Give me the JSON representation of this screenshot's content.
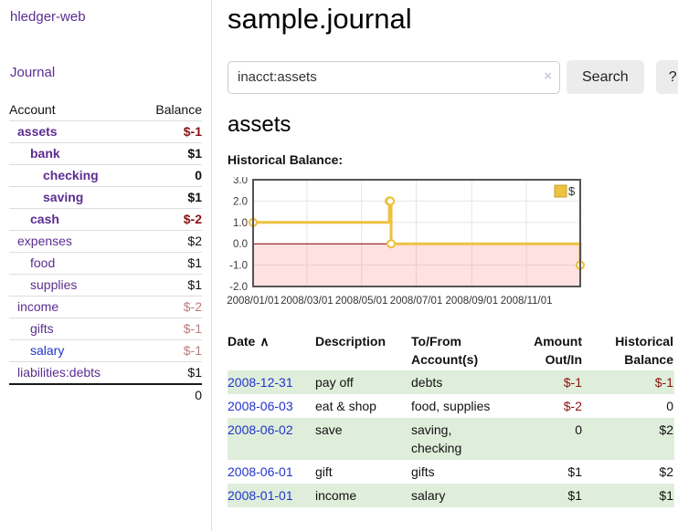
{
  "colors": {
    "accent_purple": "#5c2d91",
    "link_blue": "#2233cc",
    "negative_strong": "#8b1010",
    "negative_muted": "#bb7a7a",
    "row_green": "#dfeeda",
    "chart_line": "#edc240",
    "chart_zero_line": "#8b0000",
    "chart_negative_fill": "rgba(255,90,90,0.18)"
  },
  "sidebar": {
    "app_title": "hledger-web",
    "journal_label": "Journal",
    "accounts_table": {
      "col_account": "Account",
      "col_balance": "Balance",
      "rows": [
        {
          "name": "assets",
          "balance": "$-1"
        },
        {
          "name": "bank",
          "balance": "$1"
        },
        {
          "name": "checking",
          "balance": "0"
        },
        {
          "name": "saving",
          "balance": "$1"
        },
        {
          "name": "cash",
          "balance": "$-2"
        },
        {
          "name": "expenses",
          "balance": "$2"
        },
        {
          "name": "food",
          "balance": "$1"
        },
        {
          "name": "supplies",
          "balance": "$1"
        },
        {
          "name": "income",
          "balance": "$-2"
        },
        {
          "name": "gifts",
          "balance": "$-1"
        },
        {
          "name": "salary",
          "balance": "$-1"
        },
        {
          "name": "liabilities:debts",
          "balance": "$1"
        }
      ],
      "total": "0"
    }
  },
  "main": {
    "title": "sample.journal",
    "search": {
      "value": "inacct:assets",
      "clear_icon": "×",
      "button_label": "Search",
      "help_label": "?"
    },
    "account_heading": "assets",
    "chart_heading": "Historical Balance:",
    "register_table": {
      "headers": {
        "date": "Date",
        "sort_indicator": "∧",
        "description": "Description",
        "accounts": "To/From Account(s)",
        "amount": "Amount Out/In",
        "historical": "Historical Balance"
      },
      "rows": [
        {
          "date": "2008-12-31",
          "description": "pay off",
          "accounts": "debts",
          "amount": "$-1",
          "historical": "$-1"
        },
        {
          "date": "2008-06-03",
          "description": "eat & shop",
          "accounts": "food, supplies",
          "amount": "$-2",
          "historical": "0"
        },
        {
          "date": "2008-06-02",
          "description": "save",
          "accounts": "saving, checking",
          "amount": "0",
          "historical": "$2"
        },
        {
          "date": "2008-06-01",
          "description": "gift",
          "accounts": "gifts",
          "amount": "$1",
          "historical": "$2"
        },
        {
          "date": "2008-01-01",
          "description": "income",
          "accounts": "salary",
          "amount": "$1",
          "historical": "$1"
        }
      ]
    }
  },
  "chart_data": {
    "type": "line",
    "step": true,
    "title": "Historical Balance:",
    "x": [
      "2008-01-01",
      "2008-06-01",
      "2008-06-02",
      "2008-06-03",
      "2008-12-31"
    ],
    "series": [
      {
        "name": "$",
        "color": "#edc240",
        "values": [
          1,
          2,
          2,
          0,
          -1
        ]
      }
    ],
    "legend": {
      "label": "$",
      "position": "top-right"
    },
    "ylim": [
      -2,
      3
    ],
    "yticks": [
      3.0,
      2.0,
      1.0,
      0.0,
      -1.0,
      -2.0
    ],
    "ytick_labels": [
      "3.0",
      "2.0",
      "1.0",
      "0.0",
      "-1.0",
      "-2.0"
    ],
    "xdomain": [
      "2008-01-01",
      "2008-12-31"
    ],
    "xticks": [
      {
        "date": "2008-01-01",
        "label": "2008/01/01"
      },
      {
        "date": "2008-03-01",
        "label": "2008/03/01"
      },
      {
        "date": "2008-05-01",
        "label": "2008/05/01"
      },
      {
        "date": "2008-07-01",
        "label": "2008/07/01"
      },
      {
        "date": "2008-09-01",
        "label": "2008/09/01"
      },
      {
        "date": "2008-11-01",
        "label": "2008/11/01"
      }
    ],
    "grid": true,
    "negative_region_below": 0,
    "zero_line_color": "#8b0000",
    "negative_fill_color": "rgba(255,90,90,0.18)",
    "border_color": "#545454"
  }
}
